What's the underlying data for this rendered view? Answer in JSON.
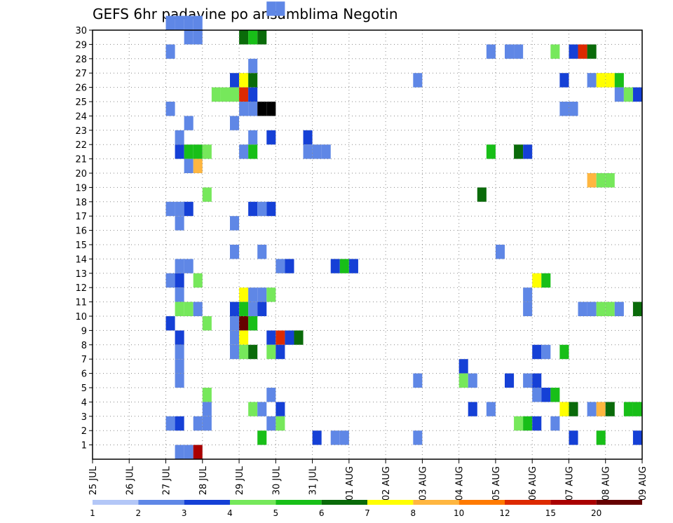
{
  "chart_data": {
    "type": "heatmap",
    "title": "GEFS 6hr padavine po ansamblima Negotin",
    "xlabel": "",
    "ylabel": "",
    "x_tick_labels": [
      "25 JUL",
      "26 JUL",
      "27 JUL",
      "28 JUL",
      "29 JUL",
      "30 JUL",
      "31 JUL",
      "01 AUG",
      "02 AUG",
      "03 AUG",
      "04 AUG",
      "05 AUG",
      "06 AUG",
      "07 AUG",
      "08 AUG",
      "09 AUG"
    ],
    "y_tick_labels": [
      "1",
      "2",
      "3",
      "4",
      "5",
      "6",
      "7",
      "8",
      "9",
      "10",
      "11",
      "12",
      "13",
      "14",
      "15",
      "16",
      "17",
      "18",
      "19",
      "20",
      "21",
      "22",
      "23",
      "24",
      "25",
      "26",
      "27",
      "28",
      "29",
      "30"
    ],
    "x_unit": "6-hour step since 25 JUL 00Z",
    "xlim": [
      0,
      60
    ],
    "ylim": [
      0,
      30
    ],
    "grid": true,
    "colorbar": {
      "placement": "bottom",
      "labels": [
        "1",
        "2",
        "3",
        "4",
        "5",
        "6",
        "7",
        "8",
        "10",
        "12",
        "15",
        "20"
      ],
      "colors": [
        "#b3c7f7",
        "#5f87e6",
        "#1540d6",
        "#76e85b",
        "#18bf18",
        "#0a6b0a",
        "#ffff00",
        "#ffb640",
        "#ff7a00",
        "#dd2a00",
        "#aa0000",
        "#660000"
      ]
    },
    "values": [
      [
        8,
        30,
        1
      ],
      [
        9,
        30,
        1
      ],
      [
        10,
        30,
        1
      ],
      [
        11,
        30,
        1
      ],
      [
        19,
        31,
        1
      ],
      [
        20,
        31,
        1
      ],
      [
        10,
        29,
        1
      ],
      [
        11,
        29,
        1
      ],
      [
        16,
        29,
        5
      ],
      [
        17,
        29,
        4
      ],
      [
        18,
        29,
        5
      ],
      [
        8,
        28,
        1
      ],
      [
        43,
        28,
        1
      ],
      [
        45,
        28,
        1
      ],
      [
        46,
        28,
        1
      ],
      [
        50,
        28,
        3
      ],
      [
        52,
        28,
        2
      ],
      [
        53,
        28,
        9
      ],
      [
        54,
        28,
        5
      ],
      [
        17,
        27,
        1
      ],
      [
        15,
        26,
        2
      ],
      [
        16,
        26,
        6
      ],
      [
        17,
        26,
        5
      ],
      [
        35,
        26,
        1
      ],
      [
        51,
        26,
        2
      ],
      [
        54,
        26,
        1
      ],
      [
        55,
        26,
        6
      ],
      [
        56,
        26,
        6
      ],
      [
        57,
        26,
        4
      ],
      [
        13,
        25,
        3
      ],
      [
        14,
        25,
        3
      ],
      [
        15,
        25,
        3
      ],
      [
        16,
        25,
        9
      ],
      [
        17,
        25,
        2
      ],
      [
        57,
        25,
        1
      ],
      [
        58,
        25,
        3
      ],
      [
        59,
        25,
        2
      ],
      [
        8,
        24,
        1
      ],
      [
        16,
        24,
        1
      ],
      [
        17,
        24,
        1
      ],
      [
        18,
        24,
        15
      ],
      [
        19,
        24,
        15
      ],
      [
        51,
        24,
        1
      ],
      [
        52,
        24,
        1
      ],
      [
        10,
        23,
        1
      ],
      [
        15,
        23,
        1
      ],
      [
        9,
        22,
        1
      ],
      [
        17,
        22,
        1
      ],
      [
        19,
        22,
        2
      ],
      [
        23,
        22,
        2
      ],
      [
        9,
        21,
        2
      ],
      [
        10,
        21,
        4
      ],
      [
        11,
        21,
        4
      ],
      [
        12,
        21,
        3
      ],
      [
        16,
        21,
        1
      ],
      [
        17,
        21,
        4
      ],
      [
        23,
        21,
        1
      ],
      [
        24,
        21,
        1
      ],
      [
        25,
        21,
        1
      ],
      [
        43,
        21,
        4
      ],
      [
        46,
        21,
        5
      ],
      [
        47,
        21,
        2
      ],
      [
        10,
        20,
        1
      ],
      [
        11,
        20,
        7
      ],
      [
        54,
        19,
        7
      ],
      [
        55,
        19,
        3
      ],
      [
        56,
        19,
        3
      ],
      [
        12,
        18,
        3
      ],
      [
        42,
        18,
        5
      ],
      [
        8,
        17,
        1
      ],
      [
        9,
        17,
        1
      ],
      [
        10,
        17,
        2
      ],
      [
        17,
        17,
        2
      ],
      [
        18,
        17,
        1
      ],
      [
        19,
        17,
        2
      ],
      [
        9,
        16,
        1
      ],
      [
        15,
        16,
        1
      ],
      [
        15,
        14,
        1
      ],
      [
        18,
        14,
        1
      ],
      [
        44,
        14,
        1
      ],
      [
        9,
        13,
        1
      ],
      [
        10,
        13,
        1
      ],
      [
        20,
        13,
        1
      ],
      [
        21,
        13,
        2
      ],
      [
        26,
        13,
        2
      ],
      [
        27,
        13,
        4
      ],
      [
        28,
        13,
        2
      ],
      [
        8,
        12,
        1
      ],
      [
        9,
        12,
        2
      ],
      [
        11,
        12,
        3
      ],
      [
        48,
        12,
        6
      ],
      [
        49,
        12,
        4
      ],
      [
        9,
        11,
        1
      ],
      [
        16,
        11,
        6
      ],
      [
        17,
        11,
        1
      ],
      [
        18,
        11,
        1
      ],
      [
        19,
        11,
        3
      ],
      [
        47,
        11,
        1
      ],
      [
        9,
        10,
        3
      ],
      [
        10,
        10,
        3
      ],
      [
        11,
        10,
        1
      ],
      [
        15,
        10,
        2
      ],
      [
        16,
        10,
        4
      ],
      [
        17,
        10,
        1
      ],
      [
        18,
        10,
        2
      ],
      [
        47,
        10,
        1
      ],
      [
        53,
        10,
        1
      ],
      [
        54,
        10,
        1
      ],
      [
        55,
        10,
        3
      ],
      [
        56,
        10,
        3
      ],
      [
        57,
        10,
        1
      ],
      [
        59,
        10,
        5
      ],
      [
        8,
        9,
        2
      ],
      [
        12,
        9,
        3
      ],
      [
        15,
        9,
        1
      ],
      [
        16,
        9,
        11
      ],
      [
        17,
        9,
        4
      ],
      [
        9,
        8,
        2
      ],
      [
        15,
        8,
        1
      ],
      [
        16,
        8,
        6
      ],
      [
        19,
        8,
        2
      ],
      [
        20,
        8,
        9
      ],
      [
        21,
        8,
        2
      ],
      [
        22,
        8,
        5
      ],
      [
        9,
        7,
        1
      ],
      [
        15,
        7,
        1
      ],
      [
        16,
        7,
        3
      ],
      [
        17,
        7,
        5
      ],
      [
        19,
        7,
        3
      ],
      [
        20,
        7,
        2
      ],
      [
        48,
        7,
        2
      ],
      [
        49,
        7,
        1
      ],
      [
        51,
        7,
        4
      ],
      [
        9,
        6,
        1
      ],
      [
        40,
        6,
        2
      ],
      [
        9,
        5,
        1
      ],
      [
        35,
        5,
        1
      ],
      [
        40,
        5,
        3
      ],
      [
        41,
        5,
        1
      ],
      [
        45,
        5,
        2
      ],
      [
        47,
        5,
        1
      ],
      [
        48,
        5,
        2
      ],
      [
        12,
        4,
        3
      ],
      [
        19,
        4,
        1
      ],
      [
        48,
        4,
        1
      ],
      [
        49,
        4,
        2
      ],
      [
        50,
        4,
        4
      ],
      [
        12,
        3,
        1
      ],
      [
        17,
        3,
        3
      ],
      [
        18,
        3,
        1
      ],
      [
        20,
        3,
        2
      ],
      [
        41,
        3,
        2
      ],
      [
        43,
        3,
        1
      ],
      [
        51,
        3,
        6
      ],
      [
        52,
        3,
        5
      ],
      [
        54,
        3,
        1
      ],
      [
        55,
        3,
        7
      ],
      [
        56,
        3,
        5
      ],
      [
        58,
        3,
        4
      ],
      [
        59,
        3,
        4
      ],
      [
        8,
        2,
        1
      ],
      [
        9,
        2,
        2
      ],
      [
        11,
        2,
        1
      ],
      [
        12,
        2,
        1
      ],
      [
        19,
        2,
        1
      ],
      [
        20,
        2,
        3
      ],
      [
        46,
        2,
        3
      ],
      [
        47,
        2,
        4
      ],
      [
        48,
        2,
        2
      ],
      [
        50,
        2,
        1
      ],
      [
        18,
        1,
        4
      ],
      [
        24,
        1,
        2
      ],
      [
        26,
        1,
        1
      ],
      [
        27,
        1,
        1
      ],
      [
        35,
        1,
        1
      ],
      [
        52,
        1,
        2
      ],
      [
        55,
        1,
        4
      ],
      [
        59,
        1,
        2
      ],
      [
        9,
        0,
        1
      ],
      [
        10,
        0,
        1
      ],
      [
        11,
        0,
        10
      ]
    ]
  }
}
